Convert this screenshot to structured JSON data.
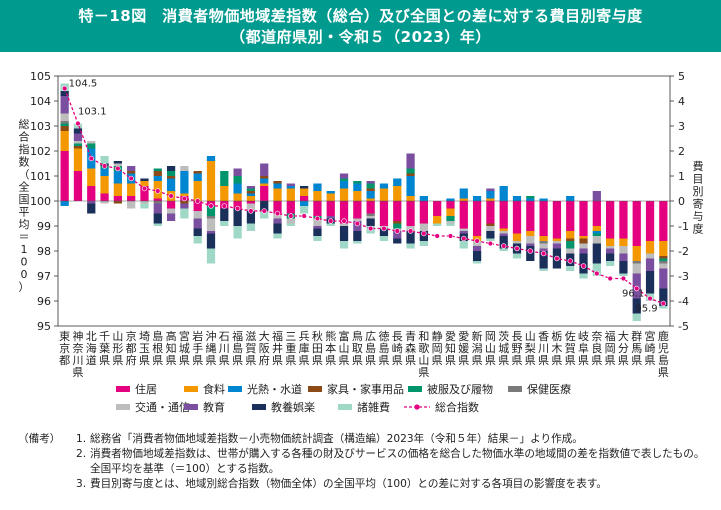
{
  "header": {
    "title_line1": "特－18図　消費者物価地域差指数（総合）及び全国との差に対する費目別寄与度",
    "title_line2": "（都道府県別・令和５（2023）年）"
  },
  "colors": {
    "header_bg": "#009a8f",
    "住居": "#e4007f",
    "食料": "#f39800",
    "光熱・水道": "#0086d1",
    "家具・家事用品": "#8b4a16",
    "被服及び履物": "#00956b",
    "保健医療": "#7a7a7a",
    "交通・通信": "#bdbdbd",
    "教育": "#7b4fa0",
    "教養娯楽": "#1a2f5a",
    "諸雑費": "#9fd8c6",
    "総合指数": "#e4007f"
  },
  "chart_data": {
    "type": "bar",
    "stacked": true,
    "left_axis": {
      "label": "総合指数（全国平均＝100）",
      "range": [
        95,
        105
      ],
      "ticks": [
        95,
        96,
        97,
        98,
        99,
        100,
        101,
        102,
        103,
        104,
        105
      ]
    },
    "right_axis": {
      "label": "費目別寄与度",
      "range": [
        -5,
        5
      ],
      "ticks": [
        -5,
        -4,
        -3,
        -2,
        -1,
        0,
        1,
        2,
        3,
        4,
        5
      ]
    },
    "categories": [
      "東京都",
      "神奈川県",
      "北海道",
      "千葉県",
      "山形県",
      "京都府",
      "埼玉県",
      "島根県",
      "高知県",
      "宮城県",
      "岩手県",
      "沖縄県",
      "石川県",
      "福島県",
      "滋賀県",
      "大阪府",
      "福井県",
      "三重県",
      "兵庫県",
      "秋田県",
      "熊本県",
      "富山県",
      "鳥取県",
      "広島県",
      "徳島県",
      "長崎県",
      "青森県",
      "和歌山県",
      "静岡県",
      "愛知県",
      "愛媛県",
      "新潟県",
      "岡山県",
      "茨城県",
      "長野県",
      "山梨県",
      "香川県",
      "栃木県",
      "佐賀県",
      "岐阜県",
      "奈良県",
      "福岡県",
      "大分県",
      "群馬県",
      "宮崎県",
      "鹿児島県"
    ],
    "series": [
      {
        "name": "住居",
        "values": [
          2.0,
          1.2,
          0.6,
          0.3,
          0.2,
          0.2,
          0.6,
          0.1,
          -0.3,
          0.2,
          -0.4,
          -0.2,
          -0.3,
          -0.3,
          -0.1,
          0.6,
          -0.5,
          -0.5,
          0.2,
          -0.6,
          -0.6,
          -0.9,
          -0.7,
          -0.5,
          -1.0,
          -0.8,
          -1.0,
          -0.9,
          -0.6,
          -0.3,
          -1.1,
          -1.4,
          -0.9,
          -1.1,
          -1.3,
          -1.2,
          -1.4,
          -1.5,
          -1.2,
          -1.4,
          -1.0,
          -1.5,
          -1.5,
          -1.8,
          -1.6,
          -1.6
        ]
      },
      {
        "name": "食料",
        "values": [
          0.8,
          0.9,
          0.7,
          0.7,
          0.5,
          0.5,
          0.2,
          0.7,
          0.4,
          0.1,
          0.8,
          1.6,
          0.6,
          0.3,
          0.2,
          0.1,
          0.5,
          0.5,
          0.3,
          0.4,
          0.3,
          0.5,
          0.4,
          0.1,
          0.5,
          0.6,
          0.2,
          0.0,
          -0.3,
          -0.3,
          0.1,
          -0.2,
          0.1,
          -0.1,
          -0.3,
          -0.2,
          -0.2,
          -0.1,
          -0.3,
          -0.1,
          -0.2,
          -0.3,
          -0.3,
          -0.6,
          -0.5,
          -0.6
        ]
      },
      {
        "name": "光熱・水道",
        "values": [
          -0.2,
          0.0,
          0.8,
          0.3,
          0.5,
          0.4,
          0.0,
          0.2,
          0.5,
          0.9,
          0.3,
          0.2,
          0.0,
          0.4,
          0.1,
          0.2,
          0.2,
          0.1,
          -0.2,
          0.3,
          0.1,
          0.3,
          0.3,
          0.3,
          0.2,
          0.3,
          0.8,
          0.2,
          0.0,
          0.1,
          0.4,
          0.2,
          0.3,
          0.6,
          0.2,
          0.1,
          0.1,
          0.0,
          0.2,
          0.0,
          -0.1,
          0.0,
          0.0,
          0.0,
          0.0,
          0.0
        ]
      },
      {
        "name": "家具・家事用品",
        "values": [
          0.2,
          0.1,
          0.0,
          0.0,
          -0.1,
          0.1,
          0.0,
          0.2,
          0.1,
          -0.1,
          0.1,
          0.0,
          0.0,
          0.0,
          0.1,
          0.1,
          0.1,
          0.0,
          0.0,
          0.0,
          0.0,
          0.0,
          0.0,
          0.1,
          0.0,
          -0.1,
          0.1,
          0.0,
          0.0,
          0.0,
          0.0,
          0.0,
          -0.1,
          0.0,
          0.0,
          0.0,
          0.0,
          0.0,
          -0.1,
          -0.2,
          0.0,
          0.0,
          0.0,
          0.0,
          0.0,
          -0.1
        ]
      },
      {
        "name": "被服及び履物",
        "values": [
          0.1,
          0.1,
          0.2,
          0.1,
          0.2,
          0.0,
          0.0,
          0.1,
          0.2,
          0.0,
          0.0,
          -0.4,
          0.6,
          0.3,
          0.1,
          0.0,
          0.0,
          -0.2,
          0.0,
          -0.1,
          0.0,
          0.1,
          0.1,
          0.2,
          0.0,
          -0.2,
          0.2,
          0.0,
          0.0,
          -0.2,
          0.0,
          0.0,
          0.0,
          0.0,
          0.0,
          0.1,
          0.0,
          0.0,
          -0.3,
          0.0,
          -0.1,
          0.0,
          0.0,
          0.0,
          0.0,
          -0.1
        ]
      },
      {
        "name": "保健医療",
        "values": [
          0.1,
          0.0,
          0.0,
          0.0,
          0.0,
          0.0,
          0.0,
          -0.1,
          0.0,
          0.0,
          0.0,
          -0.1,
          0.0,
          0.0,
          0.0,
          0.0,
          0.0,
          0.0,
          0.0,
          0.0,
          0.0,
          0.0,
          0.0,
          -0.1,
          0.0,
          0.0,
          0.0,
          0.0,
          0.0,
          0.0,
          0.0,
          0.0,
          0.0,
          0.0,
          0.0,
          0.0,
          -0.1,
          0.0,
          0.0,
          0.0,
          0.0,
          0.0,
          0.0,
          -0.1,
          0.0,
          -0.1
        ]
      },
      {
        "name": "交通・通信",
        "values": [
          0.3,
          0.1,
          0.1,
          -0.1,
          0.1,
          -0.3,
          -0.1,
          0.0,
          -0.2,
          0.2,
          -0.3,
          -0.5,
          0.0,
          0.0,
          -0.3,
          0.0,
          -0.2,
          -0.2,
          0.0,
          -0.3,
          0.0,
          -0.1,
          -0.1,
          -0.1,
          -0.1,
          -0.1,
          -0.2,
          -0.3,
          0.0,
          -0.1,
          -0.1,
          -0.2,
          -0.2,
          -0.1,
          -0.1,
          -0.3,
          -0.2,
          -0.1,
          -0.2,
          -0.2,
          -0.3,
          -0.1,
          -0.3,
          -0.4,
          -0.2,
          -0.2
        ]
      },
      {
        "name": "教育",
        "values": [
          0.7,
          0.3,
          -0.1,
          0.0,
          0.0,
          0.2,
          0.0,
          -0.4,
          -0.3,
          -0.2,
          -0.4,
          -0.1,
          0.0,
          0.3,
          0.1,
          0.5,
          -0.2,
          0.1,
          0.0,
          -0.1,
          -0.1,
          0.2,
          -0.4,
          0.1,
          0.0,
          -0.3,
          0.6,
          0.0,
          0.0,
          0.0,
          -0.1,
          -0.2,
          0.1,
          -0.1,
          0.0,
          -0.1,
          -0.1,
          -0.2,
          0.0,
          -0.2,
          0.4,
          -0.2,
          -0.3,
          -1.0,
          -0.5,
          -0.8
        ]
      },
      {
        "name": "教養娯楽",
        "values": [
          0.2,
          0.2,
          -0.4,
          0.1,
          0.1,
          0.0,
          0.1,
          -0.4,
          0.2,
          0.0,
          -0.3,
          -0.6,
          -0.5,
          -0.7,
          -0.5,
          -0.4,
          -0.4,
          0.0,
          0.1,
          -0.3,
          -0.2,
          -0.6,
          -0.4,
          -0.3,
          -0.3,
          -0.2,
          -0.5,
          -0.4,
          0.0,
          0.0,
          -0.3,
          -0.4,
          -0.3,
          -0.5,
          -0.4,
          -0.6,
          -0.7,
          -0.8,
          -0.5,
          -0.8,
          -0.8,
          -0.3,
          -0.5,
          -0.6,
          -0.9,
          -0.7
        ]
      },
      {
        "name": "諸雑費",
        "values": [
          0.3,
          0.2,
          0.0,
          0.3,
          0.0,
          0.0,
          -0.2,
          -0.1,
          0.0,
          -0.4,
          -0.3,
          -0.6,
          -0.2,
          -0.5,
          -0.3,
          -0.3,
          -0.2,
          -0.1,
          -0.3,
          -0.2,
          -0.1,
          -0.3,
          -0.1,
          -0.3,
          -0.2,
          0.0,
          -0.2,
          -0.2,
          -0.1,
          -0.1,
          -0.3,
          -0.1,
          -0.1,
          -0.1,
          -0.2,
          0.0,
          -0.1,
          0.0,
          -0.2,
          -0.2,
          -0.5,
          -0.2,
          -0.1,
          -0.3,
          -0.3,
          -0.1
        ]
      }
    ],
    "line_series": {
      "name": "総合指数",
      "values": [
        104.5,
        103.1,
        101.7,
        101.4,
        101.3,
        100.9,
        100.5,
        100.4,
        100.2,
        100.1,
        100.0,
        99.8,
        99.8,
        99.7,
        99.6,
        99.6,
        99.5,
        99.4,
        99.4,
        99.3,
        99.2,
        99.2,
        99.1,
        98.9,
        98.9,
        98.8,
        98.8,
        98.7,
        98.6,
        98.6,
        98.5,
        98.4,
        98.3,
        98.2,
        98.1,
        98.0,
        97.9,
        97.7,
        97.6,
        97.4,
        97.1,
        96.9,
        96.9,
        96.5,
        96.1,
        95.9
      ]
    },
    "annotations": [
      {
        "category": "東京都",
        "value": "104.5"
      },
      {
        "category": "神奈川県",
        "value": "103.1"
      },
      {
        "category": "宮崎県",
        "value": "96.1"
      },
      {
        "category": "鹿児島県",
        "value": "95.9"
      }
    ],
    "legend_placement": "bottom",
    "grid": false
  },
  "notes": {
    "heading": "（備考）",
    "items": [
      {
        "num": "1.",
        "text": "総務省「消費者物価地域差指数－小売物価統計調査（構造編）2023年（令和５年）結果－」より作成。"
      },
      {
        "num": "2.",
        "text": "消費者物価地域差指数は、世帯が購入する各種の財及びサービスの価格を総合した物価水準の地域間の差を指数値で表したもの。全国平均を基準（＝100）とする指数。"
      },
      {
        "num": "3.",
        "text": "費目別寄与度とは、地域別総合指数（物価全体）の全国平均（100）との差に対する各項目の影響度を表す。"
      }
    ]
  }
}
